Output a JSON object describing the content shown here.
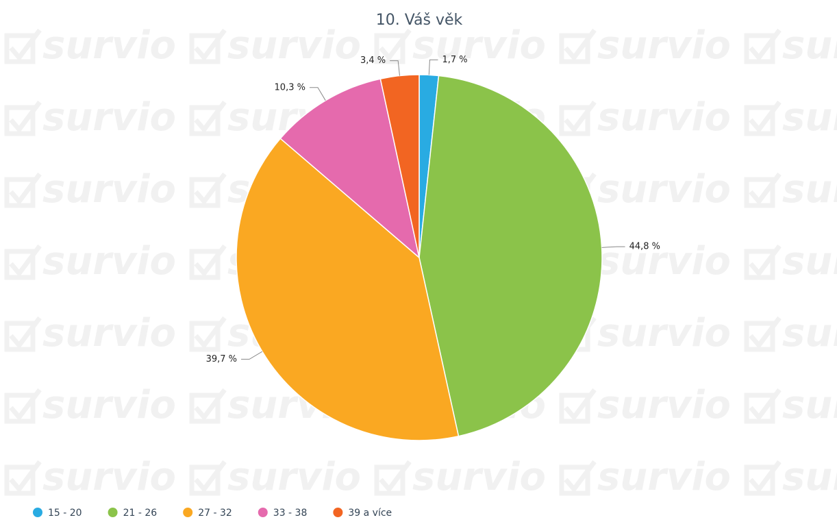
{
  "chart_data": {
    "type": "pie",
    "title": "10. Váš věk",
    "watermark": "survio",
    "categories": [
      "15 - 20",
      "21 - 26",
      "27 - 32",
      "33 - 38",
      "39 a více"
    ],
    "values": [
      1.7,
      44.8,
      39.7,
      10.3,
      3.4
    ],
    "value_labels": [
      "1,7 %",
      "44,8 %",
      "39,7 %",
      "10,3 %",
      "3,4 %"
    ],
    "colors": [
      "#29abe2",
      "#8bc34a",
      "#faa822",
      "#e56aad",
      "#f26522"
    ],
    "legend": "bottom"
  }
}
